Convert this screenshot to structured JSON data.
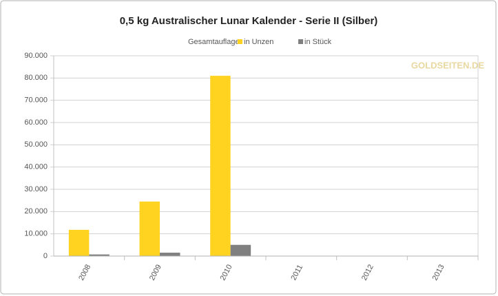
{
  "chart_data": {
    "type": "bar",
    "title": "0,5 kg Australischer Lunar Kalender - Serie II (Silber)",
    "legend_title": "Gesamtauflage",
    "watermark": "GOLDSEITEN.DE",
    "categories": [
      "2008",
      "2009",
      "2010",
      "2011",
      "2012",
      "2013"
    ],
    "series": [
      {
        "name": "in Unzen",
        "color": "#ffd320",
        "values": [
          11800,
          24500,
          81000,
          null,
          null,
          null
        ]
      },
      {
        "name": "in Stück",
        "color": "#808080",
        "values": [
          735,
          1525,
          5040,
          null,
          null,
          null
        ]
      }
    ],
    "ylim": [
      0,
      90000
    ],
    "yticks": [
      0,
      {
        "value": 10000,
        "label": "10.000"
      },
      {
        "value": 20000,
        "label": "20.000"
      },
      {
        "value": 30000,
        "label": "30.000"
      },
      {
        "value": 40000,
        "label": "40.000"
      },
      {
        "value": 50000,
        "label": "50.000"
      },
      {
        "value": 60000,
        "label": "60.000"
      },
      {
        "value": 70000,
        "label": "70.000"
      },
      {
        "value": 80000,
        "label": "80.000"
      },
      {
        "value": 90000,
        "label": "90.000"
      }
    ],
    "grid": true
  }
}
